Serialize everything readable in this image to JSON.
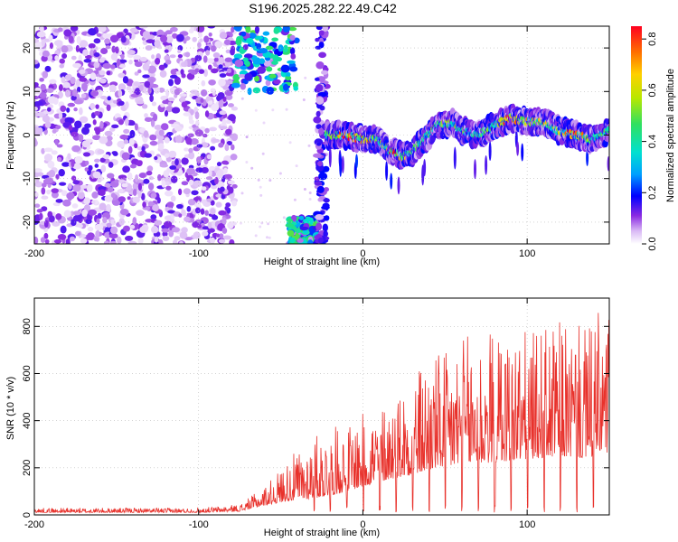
{
  "title": "S196.2025.282.22.49.C42",
  "chart_data": [
    {
      "type": "heatmap",
      "title": "",
      "xlabel": "Height of straight line (km)",
      "ylabel": "Frequency (Hz)",
      "xlim": [
        -200,
        150
      ],
      "ylim": [
        -25,
        25
      ],
      "xticks": [
        -200,
        -100,
        0,
        100
      ],
      "yticks": [
        -20,
        -10,
        0,
        10,
        20
      ],
      "colorbar": {
        "label": "Normalized spectral amplitude",
        "range": [
          0.0,
          0.85
        ],
        "ticks": [
          0.0,
          0.2,
          0.4,
          0.6,
          0.8
        ],
        "colormap": "rainbow"
      },
      "noise_region": {
        "x_range": [
          -200,
          -78
        ],
        "y_range": [
          -25,
          25
        ],
        "level": "low 0.02-0.15"
      },
      "blank_region": {
        "x_range": [
          -78,
          -22
        ],
        "note": "mostly empty except edges"
      },
      "features": [
        {
          "name": "upper-band",
          "x_range": [
            -78,
            -40
          ],
          "y_range": [
            10,
            25
          ],
          "peak": 0.45
        },
        {
          "name": "lower-band",
          "x_range": [
            -45,
            -28
          ],
          "y_range": [
            -25,
            -19
          ],
          "peak": 0.45
        },
        {
          "name": "edge-stripe",
          "x_range": [
            -28,
            -22
          ],
          "y_range": [
            -25,
            25
          ],
          "peak": 0.15
        }
      ],
      "ridge": {
        "x": [
          -22,
          -10,
          0,
          10,
          15,
          20,
          25,
          30,
          40,
          45,
          55,
          60,
          70,
          80,
          90,
          100,
          110,
          120,
          130,
          140,
          150
        ],
        "y": [
          0,
          0,
          -1,
          -1,
          -3,
          -4,
          -5,
          -4,
          0,
          2,
          3,
          1,
          0,
          2,
          4,
          3,
          3,
          1,
          0,
          -1,
          1
        ],
        "peak_amplitude": [
          0.35,
          0.75,
          0.65,
          0.5,
          0.6,
          0.8,
          0.5,
          0.4,
          0.35,
          0.4,
          0.45,
          0.4,
          0.3,
          0.5,
          0.7,
          0.55,
          0.5,
          0.6,
          0.7,
          0.4,
          0.3
        ]
      }
    },
    {
      "type": "line",
      "title": "",
      "xlabel": "Height of straight line (km)",
      "ylabel": "SNR (10 * v/v)",
      "xlim": [
        -200,
        150
      ],
      "ylim": [
        0,
        920
      ],
      "xticks": [
        -200,
        -100,
        0,
        100
      ],
      "yticks": [
        0,
        200,
        400,
        600,
        800
      ],
      "series": [
        {
          "name": "SNR",
          "color": "#e8312b",
          "envelope_x": [
            -200,
            -150,
            -100,
            -75,
            -60,
            -45,
            -30,
            -15,
            0,
            15,
            30,
            45,
            60,
            75,
            90,
            105,
            120,
            135,
            150
          ],
          "envelope_baseline": [
            10,
            10,
            10,
            15,
            40,
            60,
            70,
            90,
            120,
            150,
            170,
            200,
            210,
            220,
            230,
            240,
            250,
            240,
            260
          ],
          "envelope_peak": [
            30,
            30,
            30,
            45,
            120,
            240,
            340,
            380,
            430,
            500,
            620,
            690,
            760,
            800,
            800,
            780,
            820,
            800,
            920
          ]
        }
      ]
    }
  ],
  "colors": {
    "line": "#e8312b",
    "axis": "#000000",
    "grid": "#bbbbbb"
  }
}
